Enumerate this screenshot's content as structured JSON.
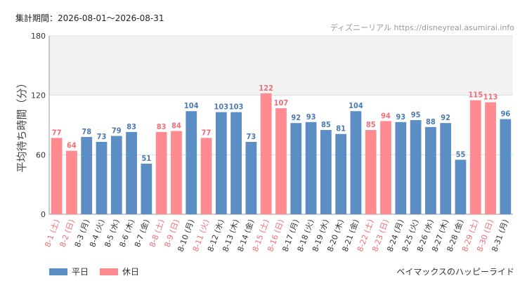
{
  "period_text": "集計期間：2026-08-01～2026-08-31",
  "source_text": "ディズニーリアル https://disneyreal.asumirai.info",
  "subtitle": "ベイマックスのハッピーライド",
  "colors": {
    "weekday": "#5b8ec4",
    "holiday": "#ff8a8f",
    "holiday_text": "#f06d75",
    "weekday_label": "#4a7ab0",
    "band": "#f2f2f2",
    "grid": "#dddddd"
  },
  "legend": [
    {
      "label": "平日",
      "color": "#5b8ec4"
    },
    {
      "label": "休日",
      "color": "#ff8a8f"
    }
  ],
  "chart_data": {
    "type": "bar",
    "ylabel": "平均待ち時間（分）",
    "ylim": [
      0,
      180
    ],
    "yticks": [
      0,
      60,
      120,
      180
    ],
    "band": [
      120,
      180
    ],
    "categories": [
      "8-1 (土)",
      "8-2 (日)",
      "8-3 (月)",
      "8-4 (火)",
      "8-5 (水)",
      "8-6 (木)",
      "8-7 (金)",
      "8-8 (土)",
      "8-9 (日)",
      "8-10 (月)",
      "8-11 (火)",
      "8-12 (水)",
      "8-13 (木)",
      "8-14 (金)",
      "8-15 (土)",
      "8-16 (日)",
      "8-17 (月)",
      "8-18 (火)",
      "8-19 (水)",
      "8-20 (木)",
      "8-21 (金)",
      "8-22 (土)",
      "8-23 (日)",
      "8-24 (月)",
      "8-25 (火)",
      "8-26 (水)",
      "8-27 (木)",
      "8-28 (金)",
      "8-29 (土)",
      "8-30 (日)",
      "8-31 (月)"
    ],
    "values": [
      77,
      64,
      78,
      73,
      79,
      83,
      51,
      83,
      84,
      104,
      77,
      103,
      103,
      73,
      122,
      107,
      92,
      93,
      85,
      81,
      104,
      85,
      94,
      93,
      95,
      88,
      92,
      55,
      115,
      113,
      96
    ],
    "day_type": [
      "休日",
      "休日",
      "平日",
      "平日",
      "平日",
      "平日",
      "平日",
      "休日",
      "休日",
      "平日",
      "休日",
      "平日",
      "平日",
      "平日",
      "休日",
      "休日",
      "平日",
      "平日",
      "平日",
      "平日",
      "平日",
      "休日",
      "休日",
      "平日",
      "平日",
      "平日",
      "平日",
      "平日",
      "休日",
      "休日",
      "平日"
    ]
  }
}
